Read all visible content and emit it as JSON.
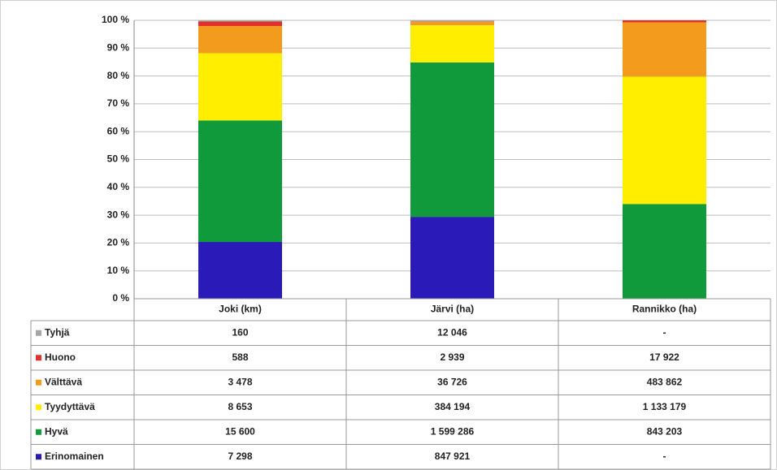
{
  "chart_data": {
    "type": "stacked-bar-100",
    "categories": [
      "Joki (km)",
      "Järvi (ha)",
      "Rannikko (ha)"
    ],
    "series": [
      {
        "name": "Tyhjä",
        "color": "#a6a6a6",
        "values": [
          160,
          12046,
          null
        ],
        "value_labels": [
          "160",
          "12 046",
          "-"
        ]
      },
      {
        "name": "Huono",
        "color": "#e0312c",
        "values": [
          588,
          2939,
          17922
        ],
        "value_labels": [
          "588",
          "2 939",
          "17 922"
        ]
      },
      {
        "name": "Välttävä",
        "color": "#f29b1d",
        "values": [
          3478,
          36726,
          483862
        ],
        "value_labels": [
          "3 478",
          "36 726",
          "483 862"
        ]
      },
      {
        "name": "Tyydyttävä",
        "color": "#ffee00",
        "values": [
          8653,
          384194,
          1133179
        ],
        "value_labels": [
          "8 653",
          "384 194",
          "1 133 179"
        ]
      },
      {
        "name": "Hyvä",
        "color": "#119a3c",
        "values": [
          15600,
          1599286,
          843203
        ],
        "value_labels": [
          "15 600",
          "1 599 286",
          "843 203"
        ]
      },
      {
        "name": "Erinomainen",
        "color": "#2a1bb8",
        "values": [
          7298,
          847921,
          null
        ],
        "value_labels": [
          "7 298",
          "847 921",
          "-"
        ]
      }
    ],
    "ylim": [
      0,
      100
    ],
    "yticks": [
      {
        "value": 0,
        "label": "0 %"
      },
      {
        "value": 10,
        "label": "10 %"
      },
      {
        "value": 20,
        "label": "20 %"
      },
      {
        "value": 30,
        "label": "30 %"
      },
      {
        "value": 40,
        "label": "40 %"
      },
      {
        "value": 50,
        "label": "50 %"
      },
      {
        "value": 60,
        "label": "60 %"
      },
      {
        "value": 70,
        "label": "70 %"
      },
      {
        "value": 80,
        "label": "80 %"
      },
      {
        "value": 90,
        "label": "90 %"
      },
      {
        "value": 100,
        "label": "100 %"
      }
    ],
    "grid": true
  }
}
